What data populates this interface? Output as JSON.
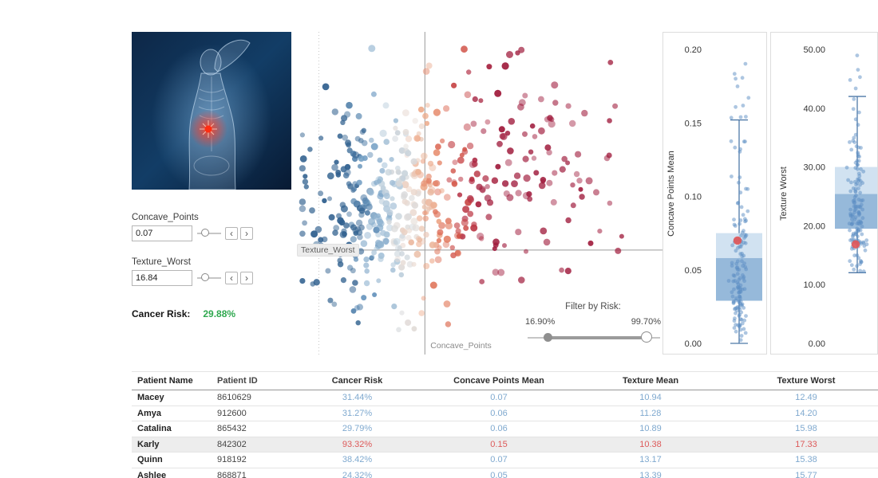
{
  "colors": {
    "value_blue": "#7fa9cf",
    "alert_red": "#dd5a5a",
    "risk_green": "#2fa84f",
    "crosshair_gray": "#9a9a9a",
    "box_fill_light": "#cddff0",
    "box_fill_dark": "#8cb1d6",
    "whisker_blue": "#4e79a7",
    "dot_blue": "#5b8ec4",
    "highlight_red": "#e15759"
  },
  "left_panel": {
    "image": "breast-anatomy-scan",
    "params": [
      {
        "label": "Concave_Points",
        "value": "0.07"
      },
      {
        "label": "Texture_Worst",
        "value": "16.84"
      }
    ],
    "risk_label": "Cancer Risk:",
    "risk_value": "29.88%"
  },
  "controls": {
    "spin_left": "‹",
    "spin_right": "›"
  },
  "filter": {
    "label": "Filter by Risk:",
    "min_label": "16.90%",
    "max_label": "99.70%"
  },
  "table": {
    "columns": [
      "Patient Name",
      "Patient ID",
      "Cancer Risk",
      "Concave Points Mean",
      "Texture Mean",
      "Texture Worst"
    ],
    "rows": [
      {
        "name": "Macey",
        "id": "8610629",
        "risk": "31.44%",
        "concave_points_mean": "0.07",
        "texture_mean": "10.94",
        "texture_worst": "12.49",
        "high_risk": false,
        "selected": false
      },
      {
        "name": "Amya",
        "id": "912600",
        "risk": "31.27%",
        "concave_points_mean": "0.06",
        "texture_mean": "11.28",
        "texture_worst": "14.20",
        "high_risk": false,
        "selected": false
      },
      {
        "name": "Catalina",
        "id": "865432",
        "risk": "29.79%",
        "concave_points_mean": "0.06",
        "texture_mean": "10.89",
        "texture_worst": "15.98",
        "high_risk": false,
        "selected": false
      },
      {
        "name": "Karly",
        "id": "842302",
        "risk": "93.32%",
        "concave_points_mean": "0.15",
        "texture_mean": "10.38",
        "texture_worst": "17.33",
        "high_risk": true,
        "selected": true
      },
      {
        "name": "Quinn",
        "id": "918192",
        "risk": "38.42%",
        "concave_points_mean": "0.07",
        "texture_mean": "13.17",
        "texture_worst": "15.38",
        "high_risk": false,
        "selected": false
      },
      {
        "name": "Ashlee",
        "id": "868871",
        "risk": "24.32%",
        "concave_points_mean": "0.05",
        "texture_mean": "13.39",
        "texture_worst": "15.77",
        "high_risk": false,
        "selected": false
      }
    ]
  },
  "chart_data": [
    {
      "type": "scatter",
      "xlabel": "Concave_Points",
      "ylabel": "Texture_Worst",
      "x_range": [
        0,
        0.2
      ],
      "y_range": [
        0,
        52
      ],
      "reference_lines": {
        "x": 0.07,
        "y": 16.84
      },
      "grid_dotted_x": 0.012,
      "color_by": "x",
      "color_domain": [
        0.03,
        0.105
      ],
      "color_stops": [
        "#31618f",
        "#6f9cc3",
        "#b8cede",
        "#eadfd8",
        "#eda684",
        "#d95f4c",
        "#b63145",
        "#a01c3d"
      ],
      "seed": 42,
      "clusters": [
        {
          "name": "benign",
          "count": 330,
          "x_mean": 0.046,
          "x_sd": 0.021,
          "y_mean": 23.0,
          "y_sd": 7.5
        },
        {
          "name": "malignant",
          "count": 195,
          "x_mean": 0.104,
          "x_sd": 0.033,
          "y_mean": 29.5,
          "y_sd": 8.5
        }
      ]
    },
    {
      "type": "box",
      "title": "Concave Points Mean",
      "ticks": [
        0,
        0.05,
        0.1,
        0.15,
        0.2
      ],
      "tick_decimals": 2,
      "box": {
        "whisker_low": 0.0,
        "q1": 0.029,
        "median": 0.058,
        "q3": 0.075,
        "whisker_high": 0.152,
        "max_outlier": 0.201
      },
      "highlight": 0.07,
      "dot_count": 150,
      "dot_quantiles": [
        0.001,
        0.012,
        0.02,
        0.027,
        0.034,
        0.045,
        0.058,
        0.07,
        0.086,
        0.115,
        0.201
      ],
      "seed": 7
    },
    {
      "type": "box",
      "title": "Texture Worst",
      "ticks": [
        0,
        10,
        20,
        30,
        40,
        50
      ],
      "tick_decimals": 2,
      "box": {
        "whisker_low": 12.02,
        "q1": 19.5,
        "median": 25.4,
        "q3": 30.0,
        "whisker_high": 42.0,
        "max_outlier": 49.5
      },
      "highlight": 16.84,
      "dot_count": 150,
      "dot_quantiles": [
        12.02,
        16.5,
        18.4,
        20.0,
        21.9,
        24.0,
        26.3,
        28.8,
        31.5,
        35.5,
        49.5
      ],
      "seed": 11
    }
  ]
}
